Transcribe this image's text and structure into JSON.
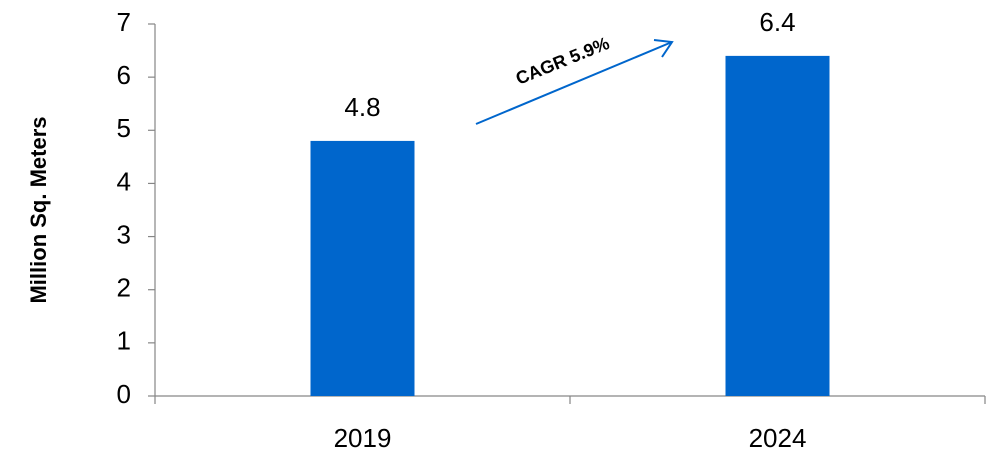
{
  "chart_data": {
    "type": "bar",
    "y_label": "Million Sq. Meters",
    "annotation": "CAGR 5.9%",
    "categories": [
      "2019",
      "2024"
    ],
    "values": [
      4.8,
      6.4
    ],
    "color": "#0066cc",
    "ylim": [
      0,
      7
    ],
    "yticks": [
      0,
      1,
      2,
      3,
      4,
      5,
      6,
      7
    ],
    "grid": false
  }
}
